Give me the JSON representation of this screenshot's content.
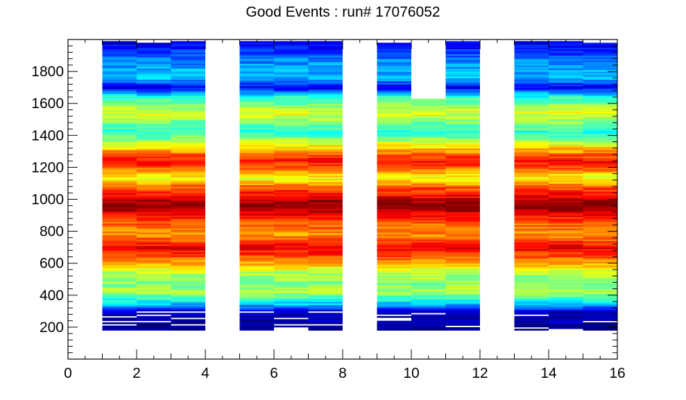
{
  "chart_data": {
    "type": "heatmap",
    "title": "Good Events : run# 17076052",
    "xlabel": "",
    "ylabel": "",
    "xlim": [
      0,
      16
    ],
    "ylim": [
      0,
      2000
    ],
    "x_ticks": [
      "0",
      "2",
      "4",
      "6",
      "8",
      "10",
      "12",
      "14",
      "16"
    ],
    "y_ticks": [
      "200",
      "400",
      "600",
      "800",
      "1000",
      "1200",
      "1400",
      "1600",
      "1800"
    ],
    "grid": false,
    "legend": "none",
    "colormap": "jet",
    "columns": [
      {
        "x": 1,
        "y_range": [
          180,
          1990
        ]
      },
      {
        "x": 2,
        "y_range": [
          180,
          1990
        ]
      },
      {
        "x": 3,
        "y_range": [
          180,
          1990
        ]
      },
      {
        "x": 5,
        "y_range": [
          180,
          1990
        ]
      },
      {
        "x": 6,
        "y_range": [
          180,
          1990
        ]
      },
      {
        "x": 7,
        "y_range": [
          180,
          1990
        ]
      },
      {
        "x": 9,
        "y_range": [
          180,
          1980
        ]
      },
      {
        "x": 10,
        "y_range": [
          180,
          1630
        ]
      },
      {
        "x": 11,
        "y_range": [
          180,
          1990
        ]
      },
      {
        "x": 13,
        "y_range": [
          180,
          1990
        ]
      },
      {
        "x": 14,
        "y_range": [
          180,
          1990
        ]
      },
      {
        "x": 15,
        "y_range": [
          180,
          1990
        ]
      }
    ],
    "intensity_profile": [
      {
        "y": 180,
        "v": 0.02
      },
      {
        "y": 300,
        "v": 0.08
      },
      {
        "y": 340,
        "v": 0.3
      },
      {
        "y": 420,
        "v": 0.55
      },
      {
        "y": 470,
        "v": 0.5
      },
      {
        "y": 540,
        "v": 0.55
      },
      {
        "y": 620,
        "v": 0.75
      },
      {
        "y": 700,
        "v": 0.9
      },
      {
        "y": 780,
        "v": 0.72
      },
      {
        "y": 850,
        "v": 0.78
      },
      {
        "y": 960,
        "v": 1.0
      },
      {
        "y": 1080,
        "v": 0.78
      },
      {
        "y": 1130,
        "v": 0.6
      },
      {
        "y": 1240,
        "v": 0.88
      },
      {
        "y": 1340,
        "v": 0.62
      },
      {
        "y": 1420,
        "v": 0.4
      },
      {
        "y": 1540,
        "v": 0.6
      },
      {
        "y": 1640,
        "v": 0.42
      },
      {
        "y": 1700,
        "v": 0.1
      },
      {
        "y": 1760,
        "v": 0.32
      },
      {
        "y": 1870,
        "v": 0.26
      },
      {
        "y": 1990,
        "v": 0.08
      }
    ]
  }
}
